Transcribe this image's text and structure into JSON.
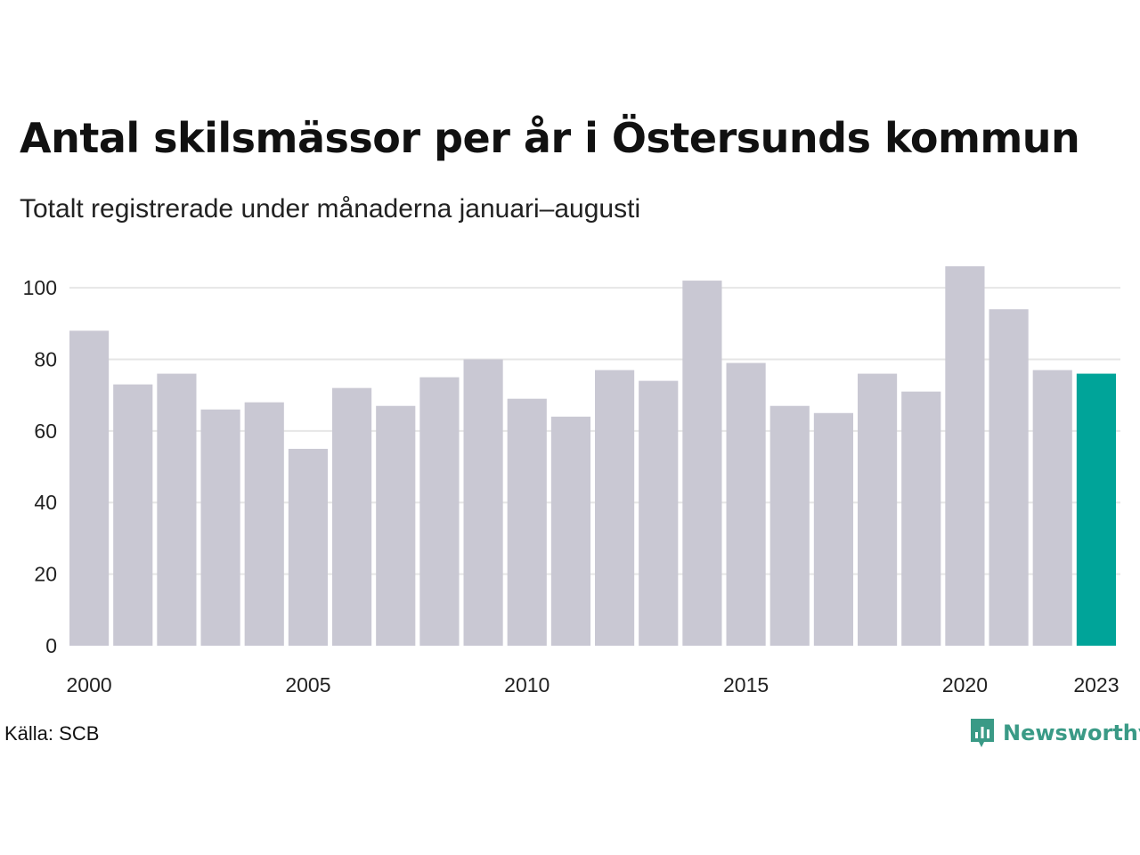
{
  "header": {
    "title": "Antal skilsmässor per år i Östersunds kommun",
    "subtitle": "Totalt registrerade under månaderna januari–augusti"
  },
  "footer": {
    "source": "Källa: SCB",
    "brand": "Newsworthy",
    "brand_icon": "bar-chart-speech-bubble-icon"
  },
  "colors": {
    "bar": "#c9c8d3",
    "highlight": "#00a499",
    "grid": "#e6e6e6",
    "brand": "#3a9a86"
  },
  "chart_data": {
    "type": "bar",
    "title": "Antal skilsmässor per år i Östersunds kommun",
    "subtitle": "Totalt registrerade under månaderna januari–augusti",
    "categories": [
      2000,
      2001,
      2002,
      2003,
      2004,
      2005,
      2006,
      2007,
      2008,
      2009,
      2010,
      2011,
      2012,
      2013,
      2014,
      2015,
      2016,
      2017,
      2018,
      2019,
      2020,
      2021,
      2022,
      2023
    ],
    "values": [
      88,
      73,
      76,
      66,
      68,
      55,
      72,
      67,
      75,
      80,
      69,
      64,
      77,
      74,
      102,
      79,
      67,
      65,
      76,
      71,
      106,
      94,
      77,
      76
    ],
    "highlight_category": 2023,
    "x_tick_labels": [
      "2000",
      "2005",
      "2010",
      "2015",
      "2020",
      "2023"
    ],
    "y_ticks": [
      0,
      20,
      40,
      60,
      80,
      100
    ],
    "ylim": [
      0,
      106
    ],
    "grid": "horizontal",
    "legend": "none"
  }
}
